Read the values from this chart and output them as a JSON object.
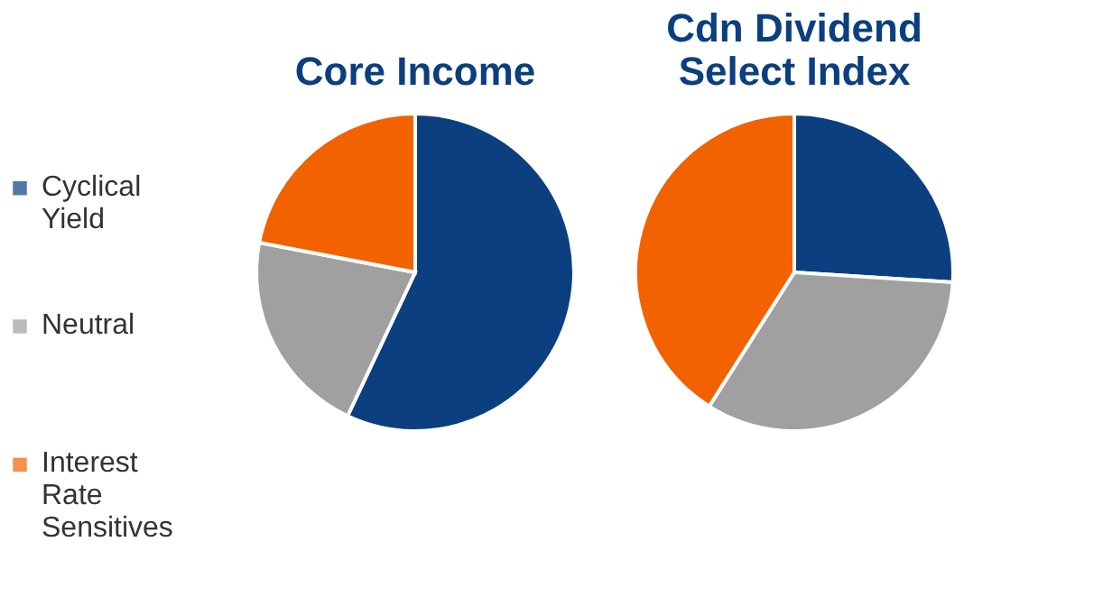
{
  "chart_data": [
    {
      "type": "pie",
      "title": "Core Income",
      "categories": [
        "Cyclical Yield",
        "Neutral",
        "Interest Rate Sensitives"
      ],
      "values": [
        57,
        21,
        22
      ],
      "colors": [
        "#0b3f7f",
        "#a0a0a0",
        "#f26200"
      ],
      "legend": "left"
    },
    {
      "type": "pie",
      "title": "Cdn Dividend Select Index",
      "categories": [
        null,
        null,
        null
      ],
      "values": [
        26,
        33,
        41
      ],
      "colors": [
        "#0b3f7f",
        "#a0a0a0",
        "#f26200"
      ]
    }
  ]
}
